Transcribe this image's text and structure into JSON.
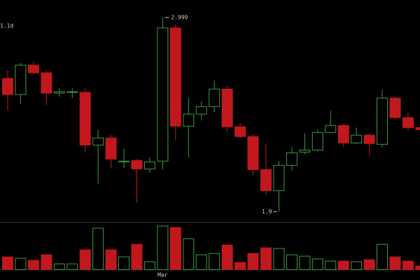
{
  "chart_data": {
    "type": "candlestick",
    "interval_label": "1.1d",
    "categories": [
      null,
      null,
      null,
      null,
      null,
      null,
      null,
      null,
      null,
      null,
      null,
      null,
      "Mar",
      null,
      null,
      null,
      null,
      null,
      null,
      null,
      null,
      null,
      null,
      null,
      null,
      null,
      null,
      null,
      null,
      null,
      null,
      null,
      null
    ],
    "open": [
      2.654,
      2.563,
      2.729,
      2.686,
      2.571,
      2.575,
      2.575,
      2.277,
      2.317,
      2.182,
      2.19,
      2.142,
      2.186,
      2.94,
      2.384,
      2.452,
      2.495,
      2.594,
      2.38,
      2.325,
      2.138,
      2.019,
      2.162,
      2.237,
      2.249,
      2.348,
      2.388,
      2.289,
      2.333,
      2.281,
      2.543,
      2.432,
      2.376
    ],
    "high": [
      2.702,
      2.741,
      2.749,
      2.702,
      2.598,
      2.598,
      2.602,
      2.364,
      2.333,
      2.257,
      2.198,
      2.206,
      2.999,
      2.959,
      2.543,
      2.523,
      2.642,
      2.614,
      2.4,
      2.337,
      2.285,
      2.186,
      2.265,
      2.344,
      2.364,
      2.471,
      2.396,
      2.376,
      2.344,
      2.59,
      2.551,
      2.463,
      2.376
    ],
    "low": [
      2.471,
      2.511,
      2.678,
      2.503,
      2.551,
      2.543,
      2.233,
      2.059,
      2.146,
      2.146,
      1.948,
      2.122,
      2.138,
      2.305,
      2.206,
      2.416,
      2.463,
      2.352,
      2.317,
      2.106,
      1.995,
      1.9,
      2.134,
      2.225,
      2.241,
      2.344,
      2.265,
      2.281,
      2.218,
      2.265,
      2.424,
      2.36,
      2.36
    ],
    "close": [
      2.563,
      2.729,
      2.686,
      2.571,
      2.579,
      2.579,
      2.277,
      2.317,
      2.198,
      2.186,
      2.142,
      2.182,
      2.94,
      2.384,
      2.452,
      2.495,
      2.594,
      2.38,
      2.325,
      2.138,
      2.019,
      2.162,
      2.233,
      2.249,
      2.348,
      2.388,
      2.289,
      2.333,
      2.285,
      2.543,
      2.432,
      2.376,
      2.364
    ],
    "volume": [
      18,
      16,
      13,
      21,
      8,
      8,
      28,
      59,
      28,
      18,
      36,
      11,
      62,
      60,
      44,
      21,
      23,
      35,
      10,
      23,
      31,
      30,
      21,
      19,
      15,
      12,
      12,
      11,
      14,
      36,
      18,
      12,
      5
    ],
    "ylim": [
      1.85,
      3.098
    ],
    "volume_ylim": [
      0,
      67
    ],
    "up_color": "#3d9b41",
    "down_color": "#c1181d",
    "annotations": {
      "high": "2.999",
      "low": "1.9"
    }
  }
}
